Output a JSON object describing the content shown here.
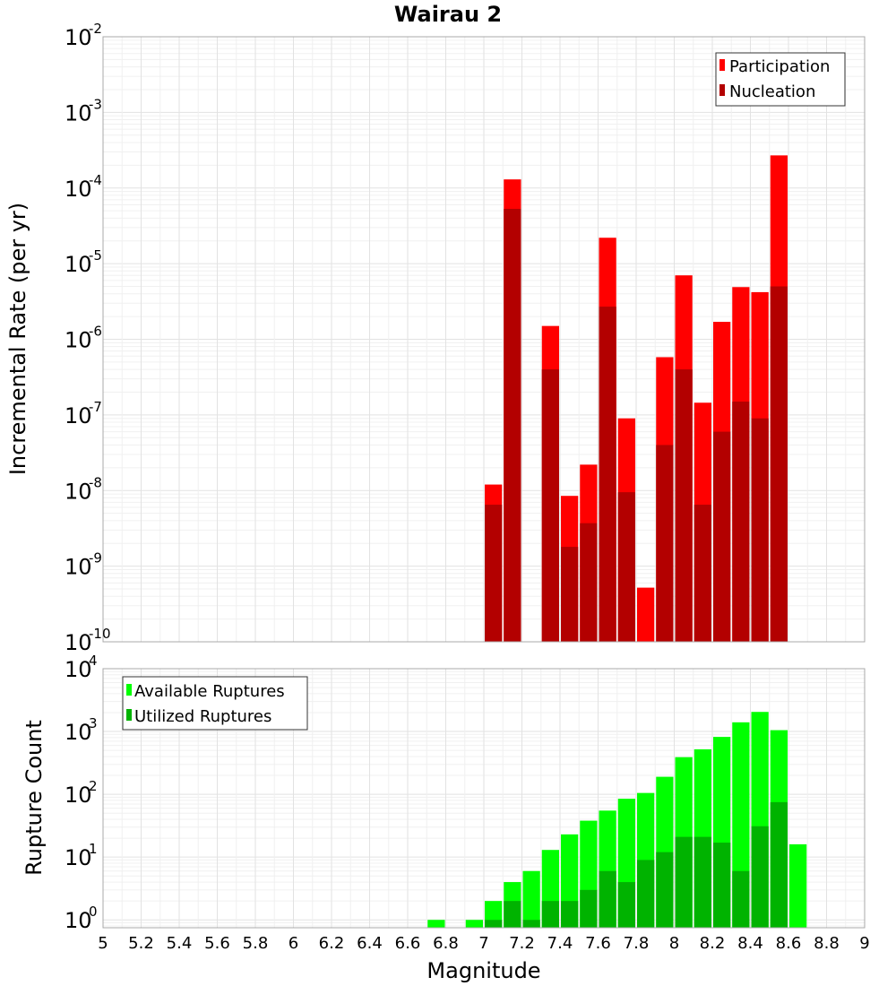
{
  "chart_data": [
    {
      "type": "bar",
      "title": "Wairau 2",
      "xlabel": "Magnitude",
      "ylabel": "Incremental Rate (per yr)",
      "xlim": [
        5,
        9
      ],
      "ylim": [
        1e-10,
        0.01
      ],
      "yscale": "log",
      "bin_width": 0.1,
      "grid": true,
      "legend_position": "top-right",
      "y_tick_labels": [
        {
          "base": "10",
          "exp": "-10",
          "value": 1e-10
        },
        {
          "base": "10",
          "exp": "-9",
          "value": 1e-09
        },
        {
          "base": "10",
          "exp": "-8",
          "value": 1e-08
        },
        {
          "base": "10",
          "exp": "-7",
          "value": 1e-07
        },
        {
          "base": "10",
          "exp": "-6",
          "value": 1e-06
        },
        {
          "base": "10",
          "exp": "-5",
          "value": 1e-05
        },
        {
          "base": "10",
          "exp": "-4",
          "value": 0.0001
        },
        {
          "base": "10",
          "exp": "-3",
          "value": 0.001
        },
        {
          "base": "10",
          "exp": "-2",
          "value": 0.01
        }
      ],
      "series": [
        {
          "name": "Participation",
          "color": "#ff0000",
          "x": [
            7.05,
            7.15,
            7.35,
            7.45,
            7.55,
            7.65,
            7.75,
            7.85,
            7.95,
            8.05,
            8.15,
            8.25,
            8.35,
            8.45,
            8.55
          ],
          "values": [
            1.2e-08,
            0.00013,
            1.5e-06,
            8.5e-09,
            2.2e-08,
            2.2e-05,
            9e-08,
            5.2e-10,
            5.8e-07,
            7e-06,
            1.45e-07,
            1.7e-06,
            4.9e-06,
            4.2e-06,
            0.00027
          ]
        },
        {
          "name": "Nucleation",
          "color": "#b30000",
          "x": [
            7.05,
            7.15,
            7.35,
            7.45,
            7.55,
            7.65,
            7.75,
            7.95,
            8.05,
            8.15,
            8.25,
            8.35,
            8.45,
            8.55
          ],
          "values": [
            6.5e-09,
            5.3e-05,
            4e-07,
            1.8e-09,
            3.7e-09,
            2.7e-06,
            9.5e-09,
            4e-08,
            4e-07,
            6.5e-09,
            6e-08,
            1.5e-07,
            9e-08,
            5e-06
          ]
        }
      ]
    },
    {
      "type": "bar",
      "title": "",
      "xlabel": "Magnitude",
      "ylabel": "Rupture Count",
      "xlim": [
        5,
        9
      ],
      "ylim": [
        0.75,
        10000
      ],
      "yscale": "log",
      "bin_width": 0.1,
      "grid": true,
      "legend_position": "top-left",
      "x_tick_labels": [
        "5",
        "5.2",
        "5.4",
        "5.6",
        "5.8",
        "6",
        "6.2",
        "6.4",
        "6.6",
        "6.8",
        "7",
        "7.2",
        "7.4",
        "7.6",
        "7.8",
        "8",
        "8.2",
        "8.4",
        "8.6",
        "8.8",
        "9"
      ],
      "y_tick_labels": [
        {
          "base": "10",
          "exp": "0",
          "value": 1
        },
        {
          "base": "10",
          "exp": "1",
          "value": 10
        },
        {
          "base": "10",
          "exp": "2",
          "value": 100
        },
        {
          "base": "10",
          "exp": "3",
          "value": 1000
        },
        {
          "base": "10",
          "exp": "4",
          "value": 10000
        }
      ],
      "series": [
        {
          "name": "Available Ruptures",
          "color": "#00ff00",
          "x": [
            6.75,
            6.95,
            7.05,
            7.15,
            7.25,
            7.35,
            7.45,
            7.55,
            7.65,
            7.75,
            7.85,
            7.95,
            8.05,
            8.15,
            8.25,
            8.35,
            8.45,
            8.55,
            8.65
          ],
          "values": [
            1,
            1,
            2,
            4,
            6,
            13,
            23,
            38,
            55,
            85,
            105,
            190,
            390,
            520,
            820,
            1400,
            2050,
            1050,
            16
          ]
        },
        {
          "name": "Utilized Ruptures",
          "color": "#00b300",
          "x": [
            7.05,
            7.15,
            7.25,
            7.35,
            7.45,
            7.55,
            7.65,
            7.75,
            7.85,
            7.95,
            8.05,
            8.15,
            8.25,
            8.35,
            8.45,
            8.55
          ],
          "values": [
            1,
            2,
            1,
            2,
            2,
            3,
            6,
            4,
            9,
            12,
            21,
            21,
            17,
            6,
            31,
            75
          ]
        }
      ]
    }
  ]
}
